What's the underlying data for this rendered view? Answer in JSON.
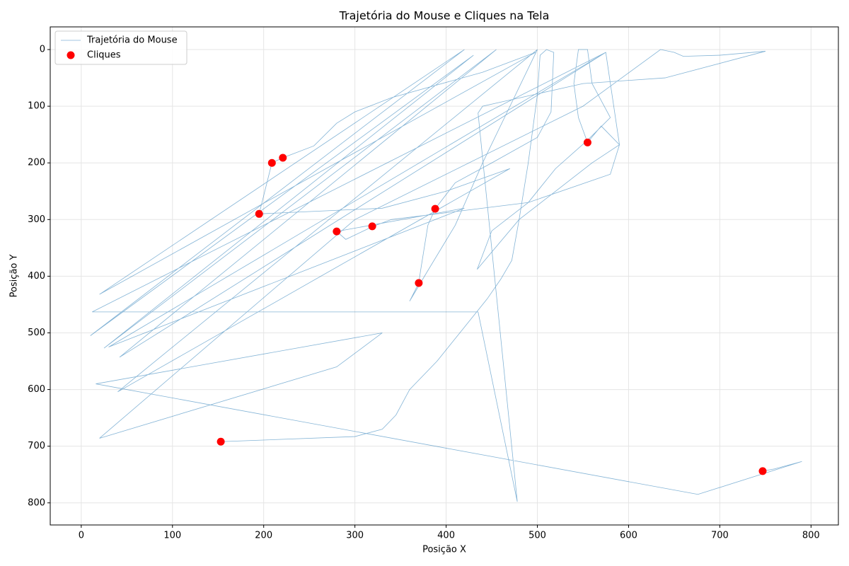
{
  "chart_data": {
    "type": "line",
    "title": "Trajetória do Mouse e Cliques na Tela",
    "xlabel": "Posição X",
    "ylabel": "Posição Y",
    "xlim": [
      -34,
      830
    ],
    "ylim": [
      839,
      -40
    ],
    "xticks": [
      0,
      100,
      200,
      300,
      400,
      500,
      600,
      700,
      800
    ],
    "yticks": [
      0,
      100,
      200,
      300,
      400,
      500,
      600,
      700,
      800
    ],
    "grid": true,
    "legend": "upper left",
    "series": [
      {
        "name": "Trajetória do Mouse",
        "kind": "line",
        "color": "#1f77b4",
        "x": [
          153,
          300,
          330,
          345,
          360,
          390,
          420,
          445,
          460,
          472,
          480,
          490,
          500,
          503,
          510,
          518,
          515,
          500,
          450,
          410,
          388,
          380,
          372,
          370,
          360,
          380,
          410,
          440,
          470,
          500,
          40,
          470,
          400,
          330,
          195,
          209,
          221,
          255,
          280,
          300,
          340,
          440,
          498,
          20,
          420,
          10,
          430,
          25,
          455,
          42,
          575,
          30,
          420,
          280,
          290,
          320,
          340,
          490,
          580,
          590,
          570,
          555,
          545,
          540,
          545,
          555,
          560,
          580,
          555,
          520,
          490,
          450,
          434,
          480,
          520,
          560,
          590,
          575,
          12,
          435,
          478,
          435,
          440,
          550,
          640,
          750,
          700,
          660,
          650,
          635,
          550,
          300,
          20,
          280,
          330,
          16,
          676,
          790,
          760,
          747
        ],
        "values": [
          692,
          683,
          670,
          645,
          600,
          550,
          490,
          440,
          405,
          372,
          300,
          200,
          80,
          10,
          0,
          5,
          110,
          155,
          200,
          235,
          281,
          310,
          390,
          412,
          444,
          390,
          310,
          200,
          100,
          0,
          604,
          210,
          250,
          280,
          290,
          200,
          191,
          170,
          130,
          110,
          85,
          40,
          5,
          432,
          0,
          505,
          10,
          527,
          0,
          543,
          5,
          525,
          280,
          321,
          335,
          312,
          300,
          270,
          220,
          168,
          135,
          164,
          120,
          60,
          0,
          0,
          60,
          120,
          160,
          210,
          270,
          320,
          388,
          300,
          250,
          200,
          168,
          5,
          463,
          463,
          798,
          112,
          100,
          60,
          50,
          3,
          10,
          12,
          5,
          0,
          100,
          300,
          686,
          560,
          500,
          590,
          785,
          727,
          740,
          744
        ]
      },
      {
        "name": "Cliques",
        "kind": "scatter",
        "color": "#ff0000",
        "x": [
          153,
          209,
          221,
          195,
          280,
          319,
          388,
          370,
          555,
          747
        ],
        "values": [
          692,
          200,
          191,
          290,
          321,
          312,
          281,
          412,
          164,
          744
        ]
      }
    ]
  }
}
